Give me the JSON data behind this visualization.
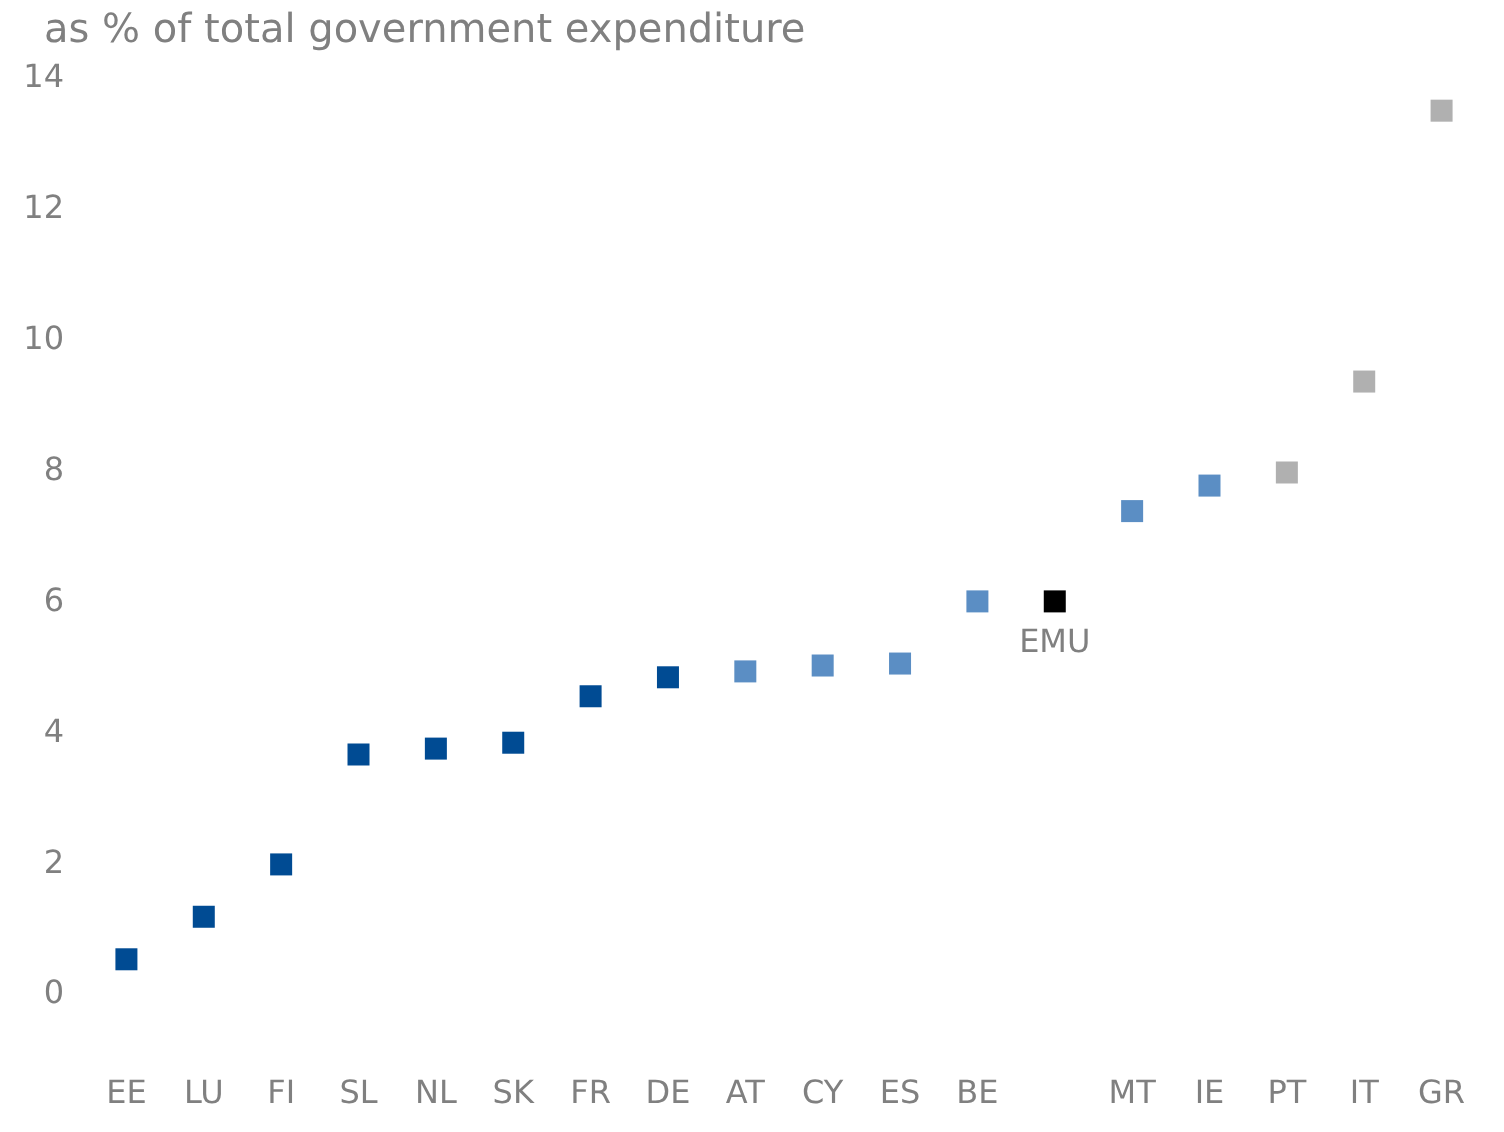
{
  "chart_data": {
    "type": "scatter",
    "title": "as % of total government expenditure",
    "categories": [
      "EE",
      "LU",
      "FI",
      "SL",
      "NL",
      "SK",
      "FR",
      "DE",
      "AT",
      "CY",
      "ES",
      "BE",
      null,
      "MT",
      "IE",
      "PT",
      "IT",
      "GR"
    ],
    "values": [
      0.5,
      1.15,
      1.95,
      3.63,
      3.72,
      3.81,
      4.52,
      4.81,
      4.9,
      4.99,
      5.02,
      5.97,
      5.97,
      7.35,
      7.74,
      7.94,
      9.33,
      13.47
    ],
    "colors": [
      "#004b93",
      "#004b93",
      "#004b93",
      "#004b93",
      "#004b93",
      "#004b93",
      "#004b93",
      "#004b93",
      "#5b8ec4",
      "#5b8ec4",
      "#5b8ec4",
      "#5b8ec4",
      "#000000",
      "#5b8ec4",
      "#5b8ec4",
      "#b0b0b0",
      "#b0b0b0",
      "#b0b0b0"
    ],
    "annotations": [
      {
        "text": "EMU",
        "y": 5.97
      }
    ],
    "ylim": [
      0,
      14
    ],
    "yticks": [
      0,
      2,
      4,
      6,
      8,
      10,
      12,
      14
    ],
    "grid": false,
    "marker": "square"
  }
}
